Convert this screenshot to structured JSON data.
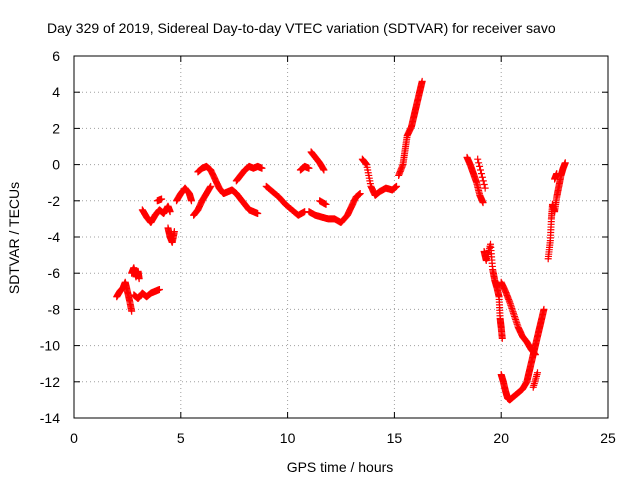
{
  "chart_data": {
    "type": "scatter",
    "title": "Day 329 of 2019, Sidereal Day-to-day VTEC variation (SDTVAR) for receiver savo",
    "xlabel": "GPS time / hours",
    "ylabel": "SDTVAR / TECUs",
    "xlim": [
      0,
      25
    ],
    "ylim": [
      -14,
      6
    ],
    "xticks": [
      "0",
      "5",
      "10",
      "15",
      "20",
      "25"
    ],
    "yticks": [
      "6",
      "4",
      "2",
      "0",
      "-2",
      "-4",
      "-6",
      "-8",
      "-10",
      "-12",
      "-14"
    ],
    "grid": true,
    "marker": "+",
    "color": "#ff0000",
    "series": [
      {
        "name": "SDTVAR",
        "segments": [
          [
            [
              2.0,
              -7.3
            ],
            [
              2.15,
              -7.0
            ],
            [
              2.3,
              -6.8
            ],
            [
              2.4,
              -6.5
            ],
            [
              2.5,
              -7.0
            ],
            [
              2.6,
              -7.5
            ],
            [
              2.7,
              -8.1
            ]
          ],
          [
            [
              2.7,
              -6.0
            ],
            [
              2.8,
              -5.7
            ],
            [
              2.9,
              -6.2
            ],
            [
              3.0,
              -5.9
            ],
            [
              3.05,
              -6.3
            ]
          ],
          [
            [
              2.8,
              -7.2
            ],
            [
              3.0,
              -7.4
            ],
            [
              3.2,
              -7.1
            ],
            [
              3.4,
              -7.3
            ],
            [
              3.6,
              -7.1
            ],
            [
              3.8,
              -7.0
            ],
            [
              4.0,
              -6.9
            ]
          ],
          [
            [
              3.2,
              -2.5
            ],
            [
              3.4,
              -2.9
            ],
            [
              3.6,
              -3.2
            ],
            [
              3.8,
              -2.8
            ],
            [
              4.0,
              -2.5
            ],
            [
              4.2,
              -2.7
            ],
            [
              4.4,
              -2.3
            ],
            [
              4.5,
              -2.6
            ]
          ],
          [
            [
              3.9,
              -2.0
            ],
            [
              4.1,
              -1.9
            ]
          ],
          [
            [
              4.4,
              -3.5
            ],
            [
              4.5,
              -4.0
            ],
            [
              4.6,
              -4.3
            ],
            [
              4.7,
              -3.7
            ]
          ],
          [
            [
              4.8,
              -2.0
            ],
            [
              5.0,
              -1.6
            ],
            [
              5.2,
              -1.3
            ],
            [
              5.4,
              -1.6
            ],
            [
              5.5,
              -2.0
            ]
          ],
          [
            [
              5.6,
              -2.8
            ],
            [
              5.8,
              -2.5
            ],
            [
              6.0,
              -2.0
            ],
            [
              6.2,
              -1.6
            ],
            [
              6.4,
              -1.2
            ]
          ],
          [
            [
              5.8,
              -0.4
            ],
            [
              6.0,
              -0.2
            ],
            [
              6.2,
              -0.1
            ],
            [
              6.4,
              -0.3
            ],
            [
              6.6,
              -0.8
            ],
            [
              6.8,
              -1.3
            ],
            [
              7.0,
              -1.6
            ],
            [
              7.2,
              -1.5
            ],
            [
              7.4,
              -1.4
            ],
            [
              7.6,
              -1.6
            ],
            [
              7.8,
              -1.9
            ],
            [
              8.0,
              -2.2
            ],
            [
              8.2,
              -2.5
            ],
            [
              8.4,
              -2.6
            ],
            [
              8.6,
              -2.7
            ]
          ],
          [
            [
              7.6,
              -0.9
            ],
            [
              7.8,
              -0.6
            ],
            [
              8.0,
              -0.3
            ],
            [
              8.2,
              -0.1
            ],
            [
              8.4,
              -0.2
            ],
            [
              8.6,
              -0.1
            ],
            [
              8.8,
              -0.2
            ]
          ],
          [
            [
              9.0,
              -1.2
            ],
            [
              9.3,
              -1.5
            ],
            [
              9.6,
              -1.8
            ],
            [
              9.9,
              -2.2
            ],
            [
              10.2,
              -2.5
            ],
            [
              10.5,
              -2.8
            ],
            [
              10.8,
              -2.6
            ]
          ],
          [
            [
              10.6,
              -0.3
            ],
            [
              10.8,
              -0.1
            ],
            [
              11.0,
              -0.2
            ]
          ],
          [
            [
              11.1,
              0.7
            ],
            [
              11.3,
              0.4
            ],
            [
              11.5,
              0.1
            ],
            [
              11.7,
              -0.3
            ]
          ],
          [
            [
              11.0,
              -2.6
            ],
            [
              11.3,
              -2.8
            ],
            [
              11.6,
              -2.9
            ],
            [
              11.9,
              -3.0
            ],
            [
              12.2,
              -3.0
            ],
            [
              12.5,
              -3.2
            ],
            [
              12.8,
              -2.8
            ],
            [
              13.0,
              -2.3
            ],
            [
              13.2,
              -1.8
            ],
            [
              13.4,
              -1.6
            ]
          ],
          [
            [
              11.5,
              -2.0
            ],
            [
              11.8,
              -2.2
            ]
          ],
          [
            [
              13.5,
              0.3
            ],
            [
              13.7,
              0.0
            ],
            [
              13.9,
              -1.2
            ],
            [
              14.1,
              -1.7
            ],
            [
              14.3,
              -1.5
            ],
            [
              14.6,
              -1.3
            ],
            [
              14.9,
              -1.4
            ],
            [
              15.1,
              -1.2
            ]
          ],
          [
            [
              15.2,
              -0.6
            ],
            [
              15.4,
              0.0
            ],
            [
              15.5,
              0.8
            ],
            [
              15.6,
              1.6
            ],
            [
              15.8,
              2.1
            ],
            [
              15.9,
              2.6
            ],
            [
              16.0,
              3.1
            ],
            [
              16.1,
              3.6
            ],
            [
              16.2,
              4.1
            ],
            [
              16.3,
              4.6
            ]
          ],
          [
            [
              18.4,
              0.4
            ],
            [
              18.55,
              0.0
            ],
            [
              18.7,
              -0.5
            ],
            [
              18.85,
              -1.0
            ],
            [
              19.0,
              -1.7
            ],
            [
              19.15,
              -2.1
            ]
          ],
          [
            [
              18.9,
              0.3
            ],
            [
              19.25,
              -1.3
            ]
          ],
          [
            [
              19.2,
              -4.8
            ],
            [
              19.3,
              -5.3
            ],
            [
              19.5,
              -4.4
            ],
            [
              19.6,
              -5.8
            ],
            [
              19.7,
              -6.4
            ],
            [
              19.8,
              -6.8
            ],
            [
              19.9,
              -7.3
            ],
            [
              19.95,
              -8.5
            ],
            [
              20.0,
              -9.0
            ],
            [
              20.05,
              -9.6
            ]
          ],
          [
            [
              20.0,
              -6.5
            ],
            [
              20.2,
              -7.0
            ],
            [
              20.4,
              -7.6
            ],
            [
              20.6,
              -8.3
            ],
            [
              20.8,
              -9.0
            ],
            [
              21.0,
              -9.5
            ],
            [
              21.2,
              -9.8
            ],
            [
              21.4,
              -10.2
            ],
            [
              21.6,
              -10.5
            ]
          ],
          [
            [
              20.0,
              -11.6
            ],
            [
              20.1,
              -12.0
            ],
            [
              20.2,
              -12.5
            ],
            [
              20.3,
              -12.9
            ],
            [
              20.4,
              -13.0
            ],
            [
              20.6,
              -12.8
            ],
            [
              20.8,
              -12.6
            ],
            [
              21.0,
              -12.4
            ],
            [
              21.2,
              -12.0
            ],
            [
              21.3,
              -11.5
            ],
            [
              21.4,
              -11.0
            ],
            [
              21.5,
              -10.5
            ],
            [
              21.6,
              -10.0
            ],
            [
              21.7,
              -9.5
            ],
            [
              21.8,
              -9.0
            ],
            [
              21.9,
              -8.5
            ],
            [
              22.0,
              -8.0
            ]
          ],
          [
            [
              21.5,
              -12.3
            ],
            [
              21.7,
              -11.5
            ]
          ],
          [
            [
              22.2,
              -5.2
            ],
            [
              22.3,
              -4.2
            ],
            [
              22.35,
              -3.0
            ],
            [
              22.4,
              -2.2
            ],
            [
              22.5,
              -2.6
            ],
            [
              22.6,
              -1.8
            ],
            [
              22.7,
              -1.2
            ],
            [
              22.8,
              -0.6
            ],
            [
              22.9,
              -0.2
            ],
            [
              23.0,
              0.1
            ]
          ],
          [
            [
              22.5,
              -0.8
            ],
            [
              22.6,
              -0.5
            ]
          ]
        ]
      }
    ]
  }
}
